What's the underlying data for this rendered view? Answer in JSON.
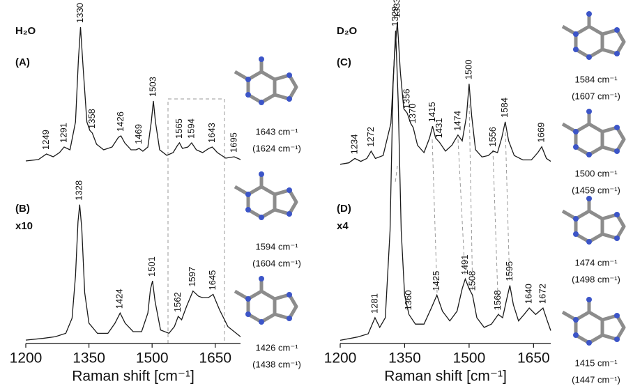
{
  "chart_data": [
    {
      "type": "line",
      "title": "H₂O",
      "label": "(A)",
      "color": "#1a1a1a",
      "x": [
        1200,
        1230,
        1249,
        1265,
        1280,
        1291,
        1305,
        1318,
        1325,
        1330,
        1336,
        1345,
        1352,
        1358,
        1368,
        1385,
        1405,
        1420,
        1426,
        1435,
        1450,
        1462,
        1469,
        1478,
        1490,
        1498,
        1503,
        1508,
        1518,
        1535,
        1550,
        1560,
        1565,
        1572,
        1585,
        1594,
        1605,
        1620,
        1635,
        1643,
        1655,
        1675,
        1695,
        1710
      ],
      "values": [
        2,
        3,
        7,
        5,
        8,
        12,
        10,
        30,
        75,
        98,
        70,
        30,
        24,
        22,
        14,
        10,
        12,
        19,
        20,
        15,
        10,
        10,
        11,
        9,
        12,
        30,
        45,
        30,
        10,
        6,
        8,
        13,
        15,
        11,
        12,
        15,
        10,
        8,
        11,
        12,
        8,
        4,
        5,
        3
      ],
      "peaks": [
        1249,
        1291,
        1330,
        1358,
        1426,
        1469,
        1503,
        1565,
        1594,
        1643,
        1695
      ],
      "xlim": [
        1200,
        1710
      ],
      "ylim": [
        0,
        100
      ]
    },
    {
      "type": "line",
      "label": "(B)",
      "scale": "x10",
      "color": "#1a1a1a",
      "x": [
        1200,
        1240,
        1270,
        1295,
        1310,
        1318,
        1324,
        1328,
        1333,
        1340,
        1350,
        1370,
        1395,
        1412,
        1424,
        1436,
        1455,
        1475,
        1490,
        1496,
        1501,
        1507,
        1520,
        1540,
        1553,
        1562,
        1570,
        1582,
        1597,
        1610,
        1620,
        1633,
        1645,
        1660,
        1680,
        1710
      ],
      "values": [
        2,
        3,
        4,
        6,
        15,
        40,
        72,
        82,
        68,
        30,
        12,
        6,
        6,
        12,
        18,
        12,
        7,
        7,
        18,
        32,
        37,
        25,
        8,
        6,
        10,
        16,
        14,
        22,
        31,
        28,
        27,
        27,
        29,
        20,
        10,
        4
      ],
      "peaks": [
        1328,
        1424,
        1501,
        1562,
        1597,
        1645
      ],
      "xlim": [
        1200,
        1710
      ],
      "ylim": [
        0,
        100
      ],
      "xticks": [
        1200,
        1350,
        1500,
        1650
      ],
      "xlabel": "Raman shift [cm⁻¹]"
    },
    {
      "type": "line",
      "title": "D₂O",
      "label": "(C)",
      "color": "#1a1a1a",
      "x": [
        1200,
        1220,
        1234,
        1248,
        1262,
        1272,
        1282,
        1300,
        1318,
        1326,
        1333,
        1340,
        1348,
        1356,
        1364,
        1370,
        1380,
        1395,
        1408,
        1415,
        1422,
        1431,
        1445,
        1460,
        1474,
        1484,
        1494,
        1500,
        1506,
        1515,
        1530,
        1545,
        1556,
        1566,
        1576,
        1584,
        1592,
        1605,
        1625,
        1645,
        1660,
        1669,
        1680,
        1690
      ],
      "values": [
        2,
        3,
        6,
        4,
        6,
        11,
        6,
        8,
        30,
        75,
        99,
        65,
        40,
        37,
        30,
        27,
        15,
        10,
        20,
        28,
        20,
        17,
        11,
        15,
        22,
        18,
        35,
        57,
        35,
        12,
        7,
        8,
        11,
        10,
        20,
        31,
        18,
        8,
        5,
        5,
        10,
        14,
        6,
        4
      ],
      "peaks": [
        1234,
        1272,
        1333,
        1356,
        1370,
        1415,
        1431,
        1474,
        1500,
        1556,
        1584,
        1669
      ],
      "xlim": [
        1200,
        1690
      ],
      "ylim": [
        0,
        100
      ]
    },
    {
      "type": "line",
      "label": "(D)",
      "scale": "x4",
      "color": "#1a1a1a",
      "x": [
        1200,
        1240,
        1265,
        1281,
        1292,
        1305,
        1316,
        1323,
        1329,
        1335,
        1342,
        1350,
        1360,
        1375,
        1395,
        1412,
        1425,
        1438,
        1455,
        1472,
        1484,
        1491,
        1500,
        1508,
        1518,
        1535,
        1552,
        1568,
        1578,
        1588,
        1595,
        1603,
        1615,
        1628,
        1640,
        1655,
        1672,
        1682,
        1690
      ],
      "values": [
        1,
        2,
        3,
        8,
        5,
        8,
        35,
        80,
        97,
        75,
        35,
        15,
        9,
        6,
        6,
        11,
        15,
        10,
        7,
        10,
        17,
        20,
        17,
        15,
        8,
        5,
        6,
        9,
        8,
        14,
        18,
        12,
        7,
        9,
        11,
        9,
        11,
        7,
        4
      ],
      "peaks": [
        1281,
        1329,
        1360,
        1425,
        1491,
        1508,
        1568,
        1595,
        1640,
        1672
      ],
      "xlim": [
        1200,
        1690
      ],
      "ylim": [
        0,
        100
      ],
      "xticks": [
        1200,
        1350,
        1500,
        1650
      ],
      "xlabel": "Raman shift [cm⁻¹]"
    }
  ],
  "modes": [
    {
      "label": "1643 cm⁻¹",
      "calc": "(1624 cm⁻¹)"
    },
    {
      "label": "1594 cm⁻¹",
      "calc": "(1604 cm⁻¹)"
    },
    {
      "label": "1426 cm⁻¹",
      "calc": "(1438 cm⁻¹)"
    },
    {
      "label": "1584 cm⁻¹",
      "calc": "(1607 cm⁻¹)"
    },
    {
      "label": "1500 cm⁻¹",
      "calc": "(1459 cm⁻¹)"
    },
    {
      "label": "1474 cm⁻¹",
      "calc": "(1498 cm⁻¹)"
    },
    {
      "label": "1415 cm⁻¹",
      "calc": "(1447 cm⁻¹)"
    }
  ]
}
